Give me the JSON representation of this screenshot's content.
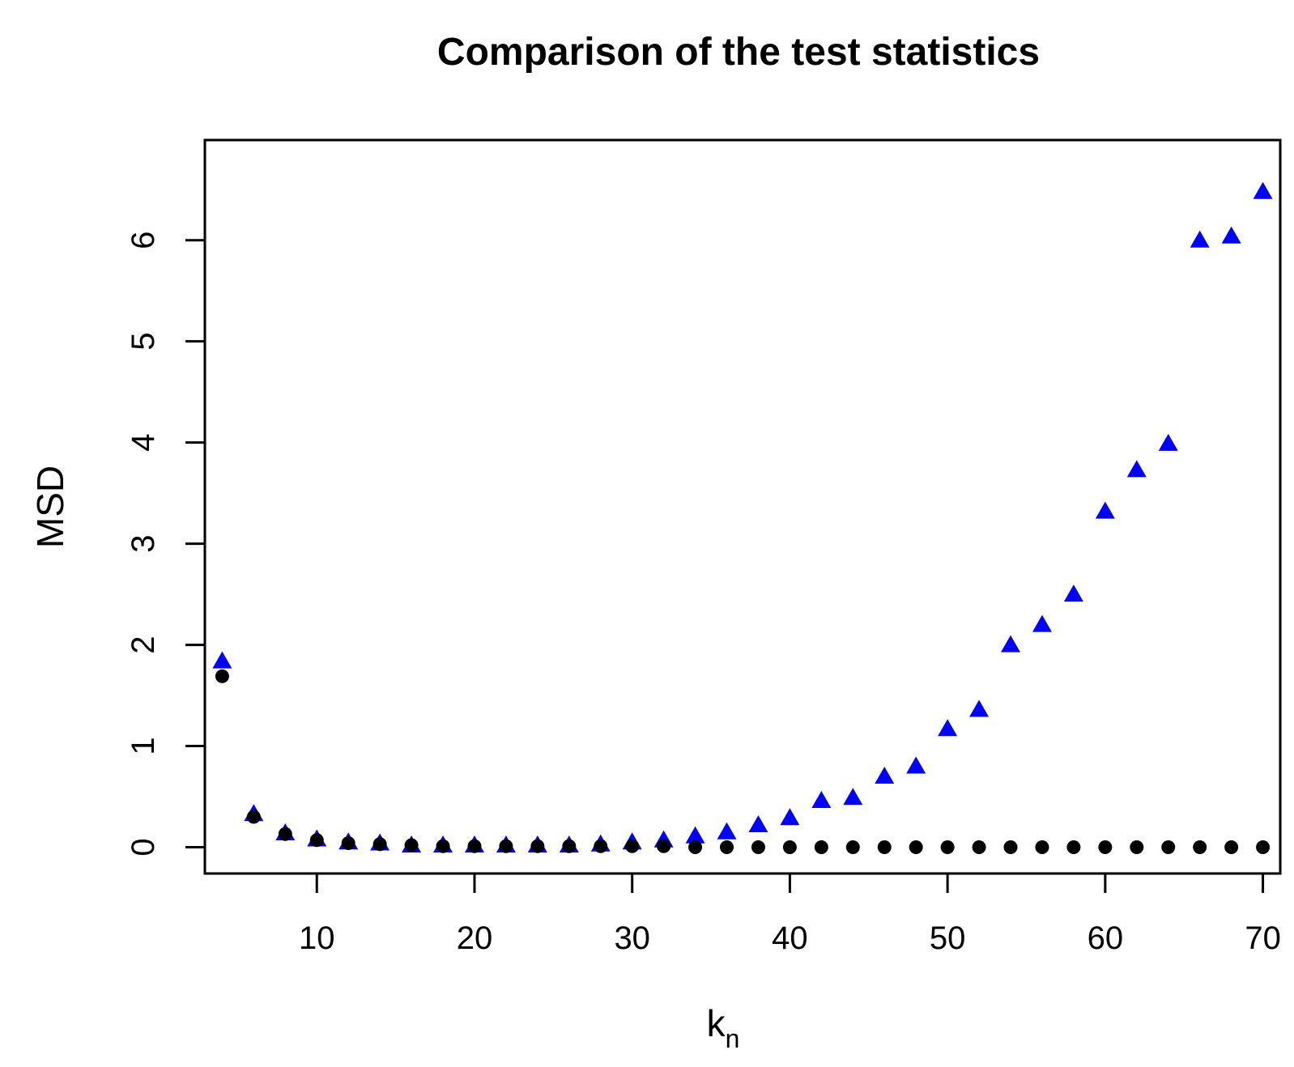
{
  "chart_data": {
    "type": "scatter",
    "title": "Comparison of the test statistics",
    "xlabel": "k",
    "xlabel_subscript": "n",
    "ylabel": "MSD",
    "xlim": [
      2.9,
      71.1
    ],
    "ylim": [
      -0.26,
      6.99
    ],
    "xticks": [
      10,
      20,
      30,
      40,
      50,
      60,
      70
    ],
    "yticks": [
      0,
      1,
      2,
      3,
      4,
      5,
      6
    ],
    "grid": false,
    "legend": "none",
    "series": [
      {
        "marker": "triangle",
        "color": "#0000ff",
        "x": [
          4,
          6,
          8,
          10,
          12,
          14,
          16,
          18,
          20,
          22,
          24,
          26,
          28,
          30,
          32,
          34,
          36,
          38,
          40,
          42,
          44,
          46,
          48,
          50,
          52,
          54,
          56,
          58,
          60,
          62,
          64,
          66,
          68,
          70
        ],
        "y": [
          1.84,
          0.33,
          0.14,
          0.08,
          0.05,
          0.04,
          0.02,
          0.02,
          0.02,
          0.02,
          0.02,
          0.02,
          0.03,
          0.05,
          0.07,
          0.11,
          0.15,
          0.22,
          0.29,
          0.46,
          0.49,
          0.7,
          0.8,
          1.17,
          1.36,
          2.0,
          2.2,
          2.5,
          3.32,
          3.73,
          3.99,
          6.0,
          6.04,
          6.48
        ]
      },
      {
        "marker": "circle",
        "color": "#000000",
        "x": [
          4,
          6,
          8,
          10,
          12,
          14,
          16,
          18,
          20,
          22,
          24,
          26,
          28,
          30,
          32,
          34,
          36,
          38,
          40,
          42,
          44,
          46,
          48,
          50,
          52,
          54,
          56,
          58,
          60,
          62,
          64,
          66,
          68,
          70
        ],
        "y": [
          1.69,
          0.3,
          0.13,
          0.07,
          0.04,
          0.03,
          0.02,
          0.01,
          0.01,
          0.01,
          0.01,
          0.01,
          0.01,
          0.01,
          0.01,
          0.0,
          0.0,
          0.0,
          0.0,
          0.0,
          0.0,
          0.0,
          0.0,
          0.0,
          0.0,
          0.0,
          0.0,
          0.0,
          0.0,
          0.0,
          0.0,
          0.0,
          0.0,
          0.0
        ]
      }
    ]
  }
}
